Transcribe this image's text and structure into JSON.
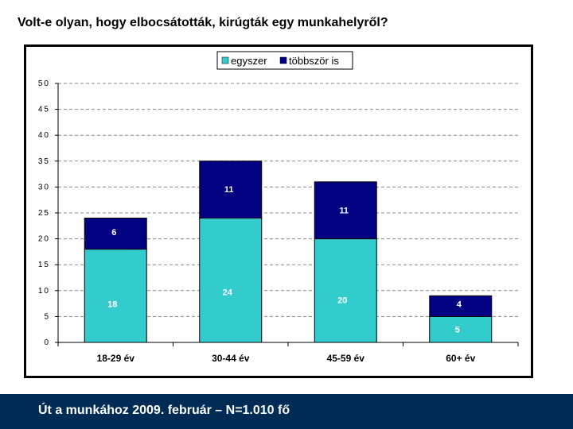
{
  "title": "Volt-e olyan, hogy elbocsátották, kirúgták egy munkahelyről?",
  "footer": "Út a munkához 2009. február – N=1.010 fő",
  "colors": {
    "series_once": "#33cccc",
    "series_multiple": "#000080",
    "footer_bg": "#002b55",
    "grid": "#888888"
  },
  "chart_data": {
    "type": "bar",
    "stacked": true,
    "categories": [
      "18-29 év",
      "30-44 év",
      "45-59 év",
      "60+ év"
    ],
    "series": [
      {
        "name": "egyszer",
        "values": [
          18,
          24,
          20,
          5
        ]
      },
      {
        "name": "többször is",
        "values": [
          6,
          11,
          11,
          4
        ]
      }
    ],
    "ylim": [
      0,
      50
    ],
    "yticks": [
      0,
      5,
      10,
      15,
      20,
      25,
      30,
      35,
      40,
      45,
      50
    ],
    "grid": true,
    "gridStyle": "dashed",
    "legend": "top-center",
    "xlabel": "",
    "ylabel": ""
  }
}
